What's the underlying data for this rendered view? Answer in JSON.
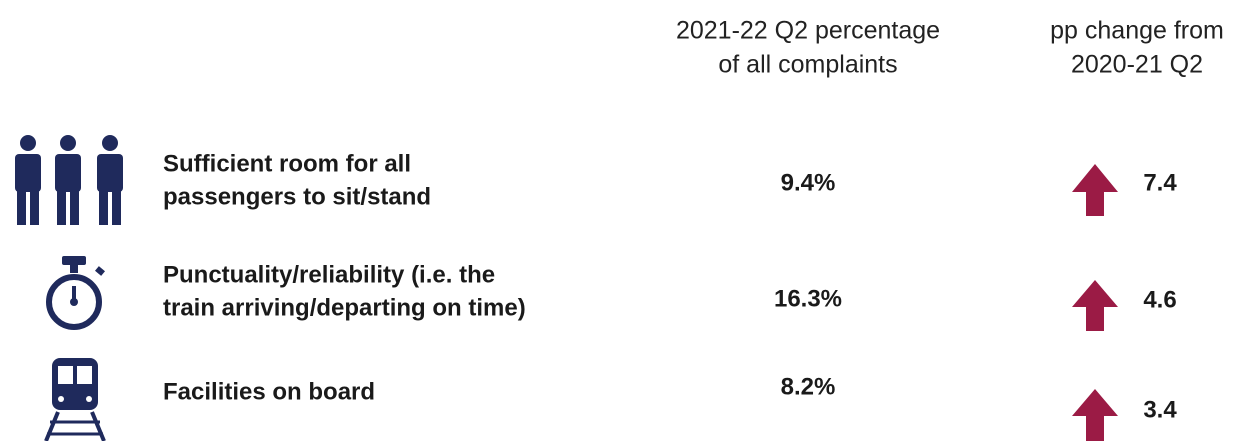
{
  "header": {
    "percentage": [
      "2021-22 Q2 percentage",
      "of all complaints"
    ],
    "change": [
      "pp change from",
      "2020-21 Q2"
    ]
  },
  "rows": [
    {
      "label": [
        "Sufficient room for all",
        "passengers to sit/stand"
      ],
      "percentage": "9.4%",
      "change": "7.4"
    },
    {
      "label": [
        "Punctuality/reliability (i.e. the",
        "train arriving/departing on time)"
      ],
      "percentage": "16.3%",
      "change": "4.6"
    },
    {
      "label": [
        "Facilities on board"
      ],
      "percentage": "8.2%",
      "change": "3.4"
    }
  ]
}
